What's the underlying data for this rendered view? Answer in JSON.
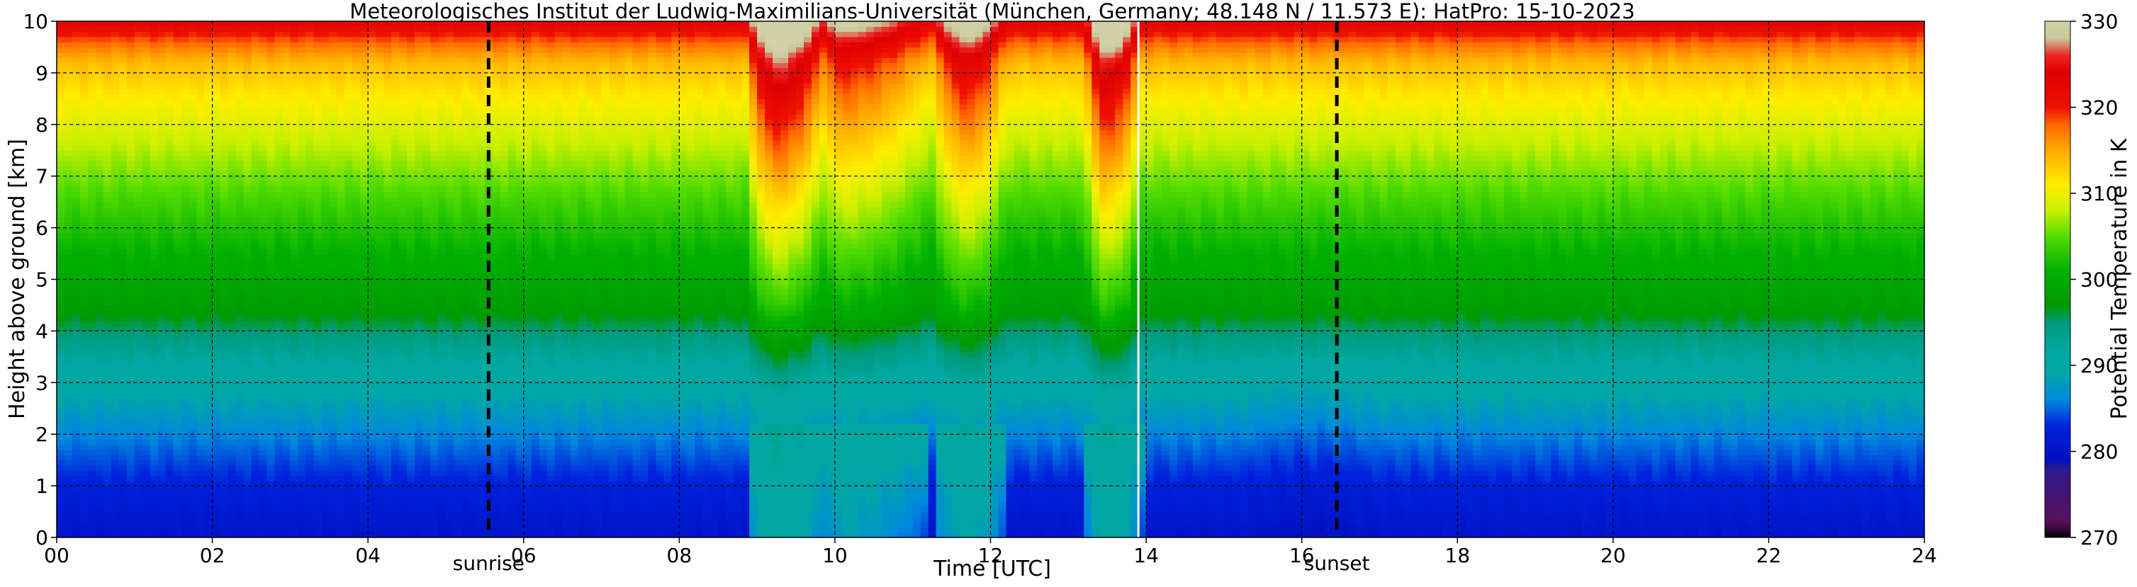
{
  "chart_data": {
    "type": "heatmap",
    "title": "Meteorologisches Institut der Ludwig-Maximilians-Universität (München, Germany; 48.148 N / 11.573 E):    HatPro: 15-10-2023",
    "xlabel": "Time [UTC]",
    "ylabel": "Height above ground [km]",
    "xlim": [
      0,
      24
    ],
    "ylim": [
      0,
      10
    ],
    "x_ticks": [
      0,
      2,
      4,
      6,
      8,
      10,
      12,
      14,
      16,
      18,
      20,
      22,
      24
    ],
    "x_tick_labels": [
      "00",
      "02",
      "04",
      "06",
      "08",
      "10",
      "12",
      "14",
      "16",
      "18",
      "20",
      "22",
      "24"
    ],
    "y_ticks": [
      0,
      1,
      2,
      3,
      4,
      5,
      6,
      7,
      8,
      9,
      10
    ],
    "y_tick_labels": [
      "0",
      "1",
      "2",
      "3",
      "4",
      "5",
      "6",
      "7",
      "8",
      "9",
      "10"
    ],
    "grid": true,
    "events": [
      {
        "label": "sunrise",
        "x": 5.55
      },
      {
        "label": "sunset",
        "x": 16.45
      }
    ],
    "data_gap": {
      "x": 13.9
    },
    "colorbar": {
      "label": "Potential Temperature in K",
      "min": 270,
      "max": 330,
      "ticks": [
        270,
        280,
        290,
        300,
        310,
        320,
        330
      ],
      "tick_labels": [
        "270",
        "280",
        "290",
        "300",
        "310",
        "320",
        "330"
      ],
      "stops": [
        {
          "value": 270,
          "color": "#000000"
        },
        {
          "value": 271,
          "color": "#3a0a3c"
        },
        {
          "value": 272,
          "color": "#5a0f5a"
        },
        {
          "value": 278,
          "color": "#2b1a90"
        },
        {
          "value": 279,
          "color": "#0010c0"
        },
        {
          "value": 283,
          "color": "#0022dd"
        },
        {
          "value": 286,
          "color": "#0088dd"
        },
        {
          "value": 289,
          "color": "#00a6a6"
        },
        {
          "value": 292,
          "color": "#00a8a0"
        },
        {
          "value": 295,
          "color": "#009a7a"
        },
        {
          "value": 297,
          "color": "#009900"
        },
        {
          "value": 301,
          "color": "#00b000"
        },
        {
          "value": 305,
          "color": "#55dd00"
        },
        {
          "value": 308,
          "color": "#c8f000"
        },
        {
          "value": 311,
          "color": "#ffee00"
        },
        {
          "value": 315,
          "color": "#ffaa00"
        },
        {
          "value": 318,
          "color": "#ff6600"
        },
        {
          "value": 320,
          "color": "#ee1100"
        },
        {
          "value": 324,
          "color": "#dd0000"
        },
        {
          "value": 326,
          "color": "#ee2222"
        },
        {
          "value": 328,
          "color": "#c8c89a"
        },
        {
          "value": 330,
          "color": "#d2d2a8"
        }
      ]
    },
    "field": {
      "description_units": "potential temperature (K) vs time (h UTC) and height (km)",
      "base_profile": [
        {
          "z": 0.0,
          "theta": 280.0
        },
        {
          "z": 1.0,
          "theta": 282.5
        },
        {
          "z": 2.0,
          "theta": 286.0
        },
        {
          "z": 3.0,
          "theta": 290.0
        },
        {
          "z": 3.8,
          "theta": 294.0
        },
        {
          "z": 4.5,
          "theta": 298.0
        },
        {
          "z": 5.5,
          "theta": 301.0
        },
        {
          "z": 6.5,
          "theta": 304.0
        },
        {
          "z": 7.5,
          "theta": 307.5
        },
        {
          "z": 8.5,
          "theta": 311.0
        },
        {
          "z": 9.2,
          "theta": 314.0
        },
        {
          "z": 9.6,
          "theta": 318.0
        },
        {
          "z": 10.0,
          "theta": 323.0
        }
      ],
      "mixing_events": [
        {
          "t_start": 8.85,
          "t_peak": 9.25,
          "t_end": 9.95,
          "strength": 13
        },
        {
          "t_start": 9.9,
          "t_peak": 10.0,
          "t_end": 11.2,
          "strength": 7
        },
        {
          "t_start": 11.25,
          "t_peak": 11.7,
          "t_end": 12.2,
          "strength": 9
        },
        {
          "t_start": 13.2,
          "t_peak": 13.5,
          "t_end": 13.95,
          "strength": 12
        }
      ]
    }
  }
}
